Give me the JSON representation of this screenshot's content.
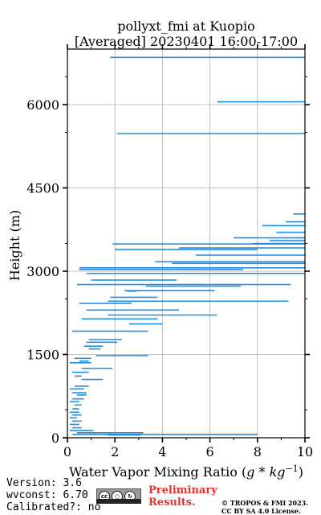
{
  "chart_data": {
    "type": "line",
    "title": "pollyxt_fmi at Kuopio",
    "subtitle": "[Averaged] 20230401 16:00-17:00",
    "xlabel": "Water Vapor Mixing Ratio (g*kg^-1)",
    "ylabel": "Height (m)",
    "xlim": [
      0,
      10
    ],
    "ylim": [
      0,
      7000
    ],
    "xticks": [
      "0",
      "2",
      "4",
      "6",
      "8",
      "10"
    ],
    "yticks": [
      "0",
      "1500",
      "3000",
      "4500",
      "6000"
    ],
    "ytick_values": [
      0,
      1500,
      3000,
      4500,
      6000
    ],
    "xtick_values": [
      0,
      2,
      4,
      6,
      8,
      10
    ],
    "grid": true,
    "line_color": "#1f8fe8",
    "segments": [
      [
        0.2,
        8,
        60
      ],
      [
        1.8,
        10,
        6850
      ],
      [
        6.3,
        10,
        6050
      ],
      [
        2.1,
        10,
        5480
      ],
      [
        9.5,
        10,
        4030
      ],
      [
        9.2,
        10,
        3890
      ],
      [
        8.2,
        10,
        3820
      ],
      [
        8.8,
        10,
        3700
      ],
      [
        7.0,
        10,
        3600
      ],
      [
        8.5,
        10,
        3550
      ],
      [
        7.8,
        10,
        3500
      ],
      [
        1.9,
        10,
        3490
      ],
      [
        4.7,
        10,
        3420
      ],
      [
        2.0,
        8.0,
        3390
      ],
      [
        5.4,
        10,
        3290
      ],
      [
        3.7,
        10,
        3170
      ],
      [
        4.4,
        10,
        3140
      ],
      [
        0.5,
        10,
        3060
      ],
      [
        0.5,
        7.4,
        3030
      ],
      [
        0.8,
        10,
        2960
      ],
      [
        1.0,
        4.6,
        2840
      ],
      [
        0.4,
        9.4,
        2760
      ],
      [
        3.3,
        7.3,
        2730
      ],
      [
        2.4,
        6.2,
        2650
      ],
      [
        2.5,
        2.9,
        2640
      ],
      [
        1.8,
        3.8,
        2530
      ],
      [
        1.7,
        9.3,
        2460
      ],
      [
        0.5,
        2.7,
        2420
      ],
      [
        0.8,
        4.7,
        2300
      ],
      [
        1.7,
        6.3,
        2210
      ],
      [
        0.6,
        3.8,
        2140
      ],
      [
        2.6,
        4.0,
        2050
      ],
      [
        0.2,
        3.4,
        1920
      ],
      [
        0.9,
        2.3,
        1770
      ],
      [
        0.8,
        2.1,
        1720
      ],
      [
        0.7,
        1.5,
        1650
      ],
      [
        0.9,
        1.4,
        1600
      ],
      [
        1.2,
        3.4,
        1480
      ],
      [
        0.3,
        1.0,
        1430
      ],
      [
        0.5,
        0.9,
        1380
      ],
      [
        0.1,
        1.0,
        1350
      ],
      [
        0.6,
        1.9,
        1250
      ],
      [
        0.2,
        0.9,
        1180
      ],
      [
        0.3,
        0.6,
        1110
      ],
      [
        0.6,
        1.5,
        1050
      ],
      [
        0.3,
        0.9,
        930
      ],
      [
        0.1,
        0.7,
        880
      ],
      [
        0.2,
        0.8,
        810
      ],
      [
        0.4,
        0.8,
        770
      ],
      [
        0.2,
        0.7,
        700
      ],
      [
        0.1,
        0.5,
        650
      ],
      [
        0.3,
        0.6,
        590
      ],
      [
        0.2,
        0.5,
        520
      ],
      [
        0.1,
        0.5,
        460
      ],
      [
        0.2,
        0.6,
        410
      ],
      [
        0.1,
        0.4,
        360
      ],
      [
        0.2,
        0.6,
        300
      ],
      [
        0.1,
        0.5,
        240
      ],
      [
        0.2,
        0.6,
        180
      ],
      [
        0.1,
        1.1,
        130
      ],
      [
        0.4,
        3.2,
        90
      ],
      [
        1.7,
        3.1,
        50
      ]
    ]
  },
  "footer": {
    "version": "Version: 3.6",
    "wvconst": "wvconst:   6.70",
    "calibrated": "Calibrated?: no",
    "preliminary_line1": "Preliminary",
    "preliminary_line2": "Results.",
    "copyright_line1": "© TROPOS & FMI 2023.",
    "copyright_line2": "CC BY SA 4.0 License.",
    "license_badge": "cc"
  }
}
